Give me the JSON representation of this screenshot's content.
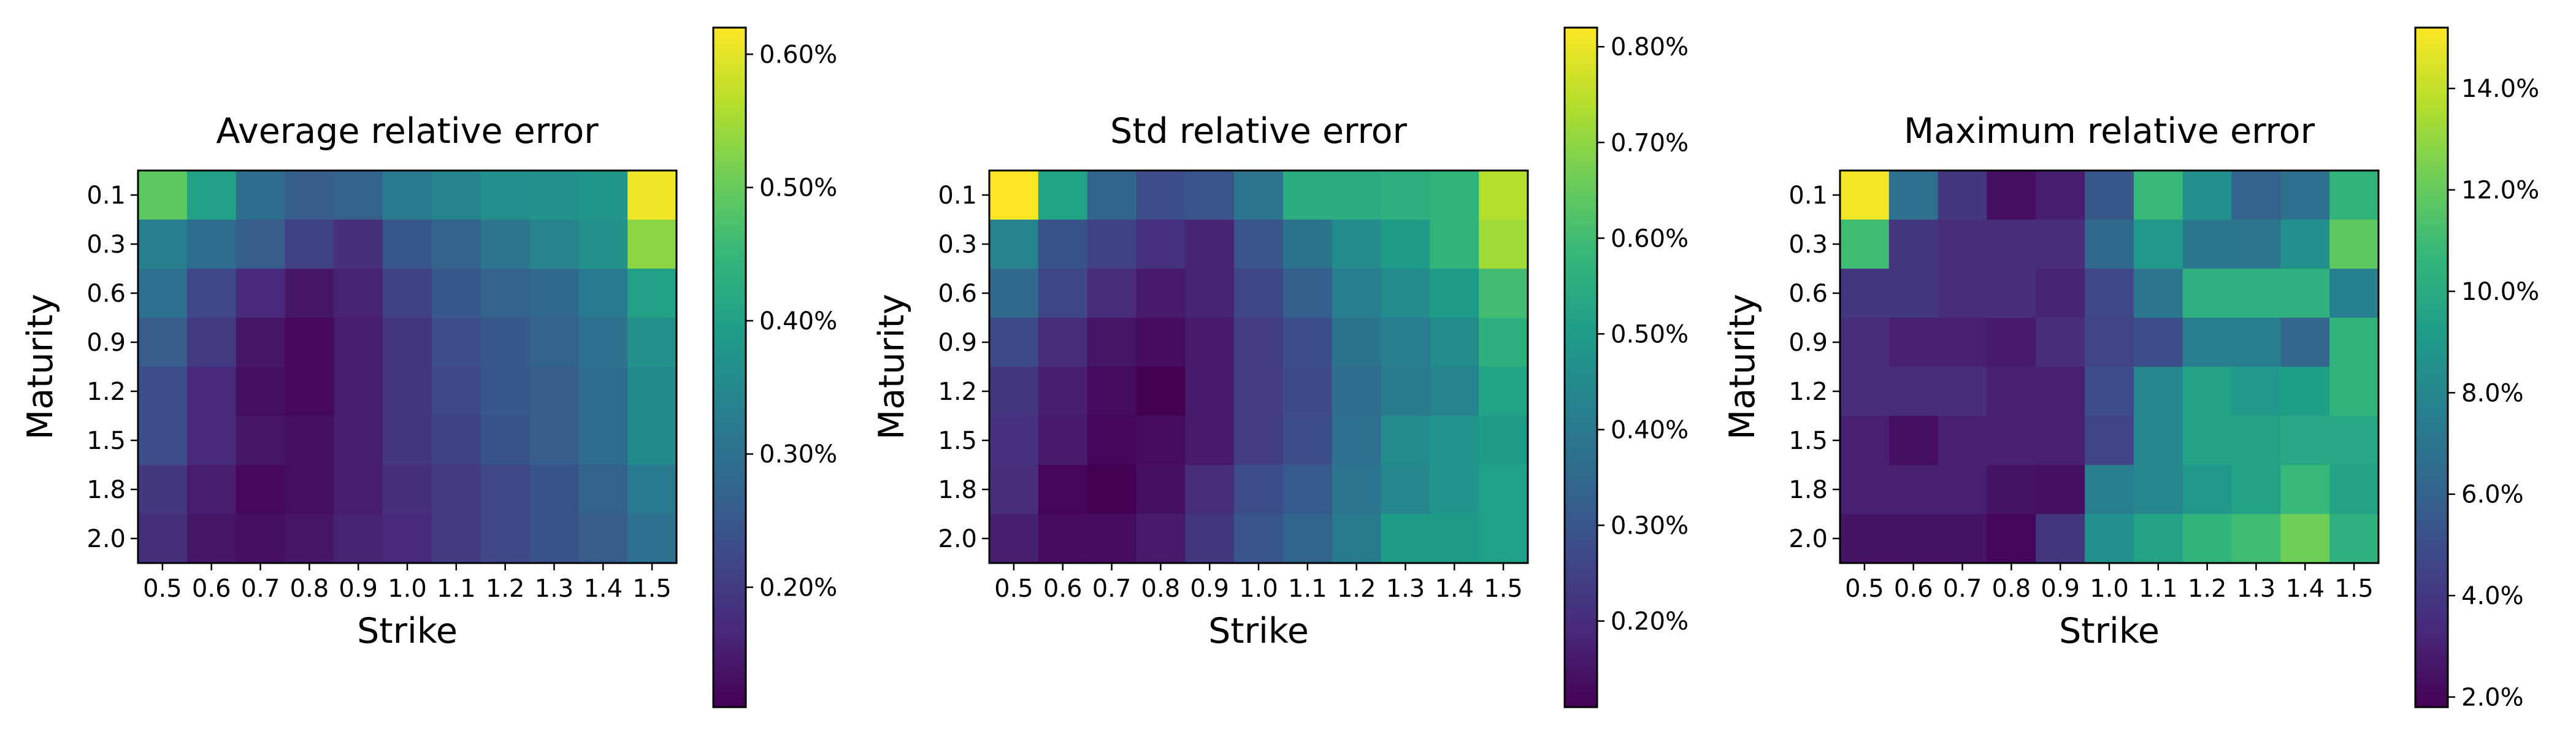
{
  "chart_data": [
    {
      "type": "heatmap",
      "title": "Average relative error",
      "xlabel": "Strike",
      "ylabel": "Maturity",
      "x": [
        "0.5",
        "0.6",
        "0.7",
        "0.8",
        "0.9",
        "1.0",
        "1.1",
        "1.2",
        "1.3",
        "1.4",
        "1.5"
      ],
      "y": [
        "0.1",
        "0.3",
        "0.6",
        "0.9",
        "1.2",
        "1.5",
        "1.8",
        "2.0"
      ],
      "values": [
        [
          0.49,
          0.4,
          0.29,
          0.26,
          0.27,
          0.32,
          0.34,
          0.36,
          0.37,
          0.38,
          0.61
        ],
        [
          0.33,
          0.29,
          0.26,
          0.21,
          0.18,
          0.25,
          0.27,
          0.31,
          0.34,
          0.37,
          0.53
        ],
        [
          0.3,
          0.22,
          0.17,
          0.14,
          0.16,
          0.21,
          0.25,
          0.27,
          0.28,
          0.32,
          0.4
        ],
        [
          0.26,
          0.2,
          0.14,
          0.12,
          0.15,
          0.19,
          0.23,
          0.25,
          0.27,
          0.3,
          0.37
        ],
        [
          0.23,
          0.17,
          0.13,
          0.12,
          0.15,
          0.19,
          0.22,
          0.25,
          0.26,
          0.29,
          0.35
        ],
        [
          0.23,
          0.17,
          0.14,
          0.13,
          0.15,
          0.19,
          0.21,
          0.24,
          0.26,
          0.29,
          0.35
        ],
        [
          0.19,
          0.15,
          0.12,
          0.13,
          0.15,
          0.18,
          0.2,
          0.22,
          0.24,
          0.27,
          0.32
        ],
        [
          0.18,
          0.14,
          0.13,
          0.14,
          0.16,
          0.17,
          0.2,
          0.22,
          0.24,
          0.26,
          0.3
        ]
      ],
      "colorbar": {
        "min": 0.11,
        "max": 0.62,
        "ticks": [
          0.2,
          0.3,
          0.4,
          0.5,
          0.6
        ],
        "tick_labels": [
          "0.20%",
          "0.30%",
          "0.40%",
          "0.50%",
          "0.60%"
        ]
      }
    },
    {
      "type": "heatmap",
      "title": "Std relative error",
      "xlabel": "Strike",
      "ylabel": "Maturity",
      "x": [
        "0.5",
        "0.6",
        "0.7",
        "0.8",
        "0.9",
        "1.0",
        "1.1",
        "1.2",
        "1.3",
        "1.4",
        "1.5"
      ],
      "y": [
        "0.1",
        "0.3",
        "0.6",
        "0.9",
        "1.2",
        "1.5",
        "1.8",
        "2.0"
      ],
      "values": [
        [
          0.82,
          0.52,
          0.34,
          0.28,
          0.3,
          0.39,
          0.55,
          0.55,
          0.56,
          0.57,
          0.74
        ],
        [
          0.43,
          0.29,
          0.25,
          0.21,
          0.18,
          0.3,
          0.38,
          0.45,
          0.5,
          0.57,
          0.72
        ],
        [
          0.35,
          0.26,
          0.2,
          0.16,
          0.18,
          0.26,
          0.32,
          0.41,
          0.45,
          0.5,
          0.6
        ],
        [
          0.27,
          0.2,
          0.15,
          0.13,
          0.16,
          0.24,
          0.28,
          0.38,
          0.41,
          0.45,
          0.56
        ],
        [
          0.22,
          0.17,
          0.13,
          0.11,
          0.16,
          0.24,
          0.27,
          0.36,
          0.4,
          0.43,
          0.52
        ],
        [
          0.21,
          0.16,
          0.12,
          0.13,
          0.16,
          0.24,
          0.28,
          0.37,
          0.45,
          0.48,
          0.5
        ],
        [
          0.2,
          0.12,
          0.11,
          0.14,
          0.2,
          0.28,
          0.31,
          0.39,
          0.44,
          0.48,
          0.51
        ],
        [
          0.17,
          0.13,
          0.13,
          0.16,
          0.22,
          0.3,
          0.34,
          0.4,
          0.5,
          0.5,
          0.51
        ]
      ],
      "colorbar": {
        "min": 0.11,
        "max": 0.82,
        "ticks": [
          0.2,
          0.3,
          0.4,
          0.5,
          0.6,
          0.7,
          0.8
        ],
        "tick_labels": [
          "0.20%",
          "0.30%",
          "0.40%",
          "0.50%",
          "0.60%",
          "0.70%",
          "0.80%"
        ]
      }
    },
    {
      "type": "heatmap",
      "title": "Maximum relative error",
      "xlabel": "Strike",
      "ylabel": "Maturity",
      "x": [
        "0.5",
        "0.6",
        "0.7",
        "0.8",
        "0.9",
        "1.0",
        "1.1",
        "1.2",
        "1.3",
        "1.4",
        "1.5"
      ],
      "y": [
        "0.1",
        "0.3",
        "0.6",
        "0.9",
        "1.2",
        "1.5",
        "1.8",
        "2.0"
      ],
      "values": [
        [
          15.0,
          6.8,
          4.0,
          2.3,
          2.9,
          5.5,
          10.8,
          8.5,
          6.0,
          6.8,
          10.5
        ],
        [
          11.0,
          4.0,
          3.5,
          3.5,
          3.5,
          6.3,
          9.0,
          7.2,
          7.0,
          8.5,
          11.8
        ],
        [
          4.0,
          4.0,
          3.5,
          3.5,
          3.1,
          4.7,
          7.0,
          10.3,
          10.3,
          10.3,
          7.7
        ],
        [
          3.5,
          3.0,
          3.0,
          2.8,
          3.5,
          4.5,
          5.0,
          7.5,
          7.5,
          6.2,
          10.5
        ],
        [
          3.5,
          3.5,
          3.5,
          3.0,
          3.0,
          5.0,
          8.0,
          9.5,
          9.0,
          9.3,
          10.5
        ],
        [
          3.0,
          2.3,
          3.0,
          3.0,
          3.0,
          4.5,
          8.0,
          9.5,
          9.5,
          9.8,
          9.8
        ],
        [
          3.0,
          3.0,
          3.0,
          2.5,
          2.3,
          7.5,
          8.0,
          9.0,
          9.5,
          10.8,
          9.6
        ],
        [
          2.5,
          2.5,
          2.5,
          2.0,
          4.0,
          8.5,
          9.5,
          10.5,
          11.0,
          12.2,
          10.3
        ]
      ],
      "colorbar": {
        "min": 1.8,
        "max": 15.2,
        "ticks": [
          2,
          4,
          6,
          8,
          10,
          12,
          14
        ],
        "tick_labels": [
          "2.0%",
          "4.0%",
          "6.0%",
          "8.0%",
          "10.0%",
          "12.0%",
          "14.0%"
        ]
      }
    }
  ],
  "colors": {
    "viridis": [
      "#440154",
      "#482878",
      "#3e4989",
      "#31688e",
      "#26828e",
      "#1f9e89",
      "#35b779",
      "#6ece58",
      "#b5de2b",
      "#fde725"
    ]
  }
}
